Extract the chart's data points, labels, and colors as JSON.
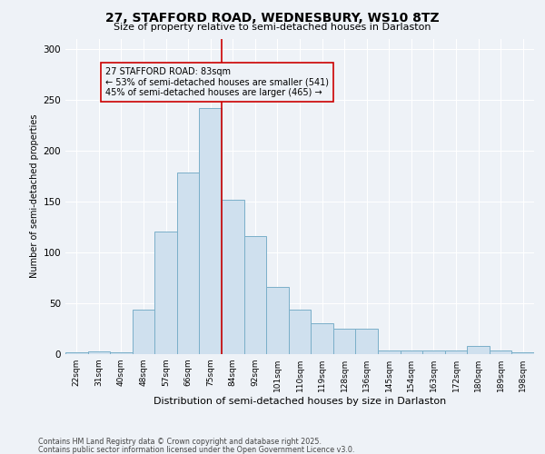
{
  "title1": "27, STAFFORD ROAD, WEDNESBURY, WS10 8TZ",
  "title2": "Size of property relative to semi-detached houses in Darlaston",
  "xlabel": "Distribution of semi-detached houses by size in Darlaston",
  "ylabel": "Number of semi-detached properties",
  "bin_labels": [
    "22sqm",
    "31sqm",
    "40sqm",
    "48sqm",
    "57sqm",
    "66sqm",
    "75sqm",
    "84sqm",
    "92sqm",
    "101sqm",
    "110sqm",
    "119sqm",
    "128sqm",
    "136sqm",
    "145sqm",
    "154sqm",
    "163sqm",
    "172sqm",
    "180sqm",
    "189sqm",
    "198sqm"
  ],
  "bar_values": [
    2,
    3,
    2,
    44,
    120,
    178,
    242,
    152,
    116,
    66,
    44,
    30,
    25,
    25,
    4,
    4,
    4,
    4,
    8,
    4,
    2
  ],
  "bar_color": "#cfe0ee",
  "bar_edge_color": "#7aafc9",
  "annotation_text": "27 STAFFORD ROAD: 83sqm\n← 53% of semi-detached houses are smaller (541)\n45% of semi-detached houses are larger (465) →",
  "vline_color": "#cc0000",
  "ylim": [
    0,
    310
  ],
  "yticks": [
    0,
    50,
    100,
    150,
    200,
    250,
    300
  ],
  "footnote1": "Contains HM Land Registry data © Crown copyright and database right 2025.",
  "footnote2": "Contains public sector information licensed under the Open Government Licence v3.0.",
  "bg_color": "#eef2f7",
  "grid_color": "#ffffff",
  "box_edge_color": "#cc0000"
}
